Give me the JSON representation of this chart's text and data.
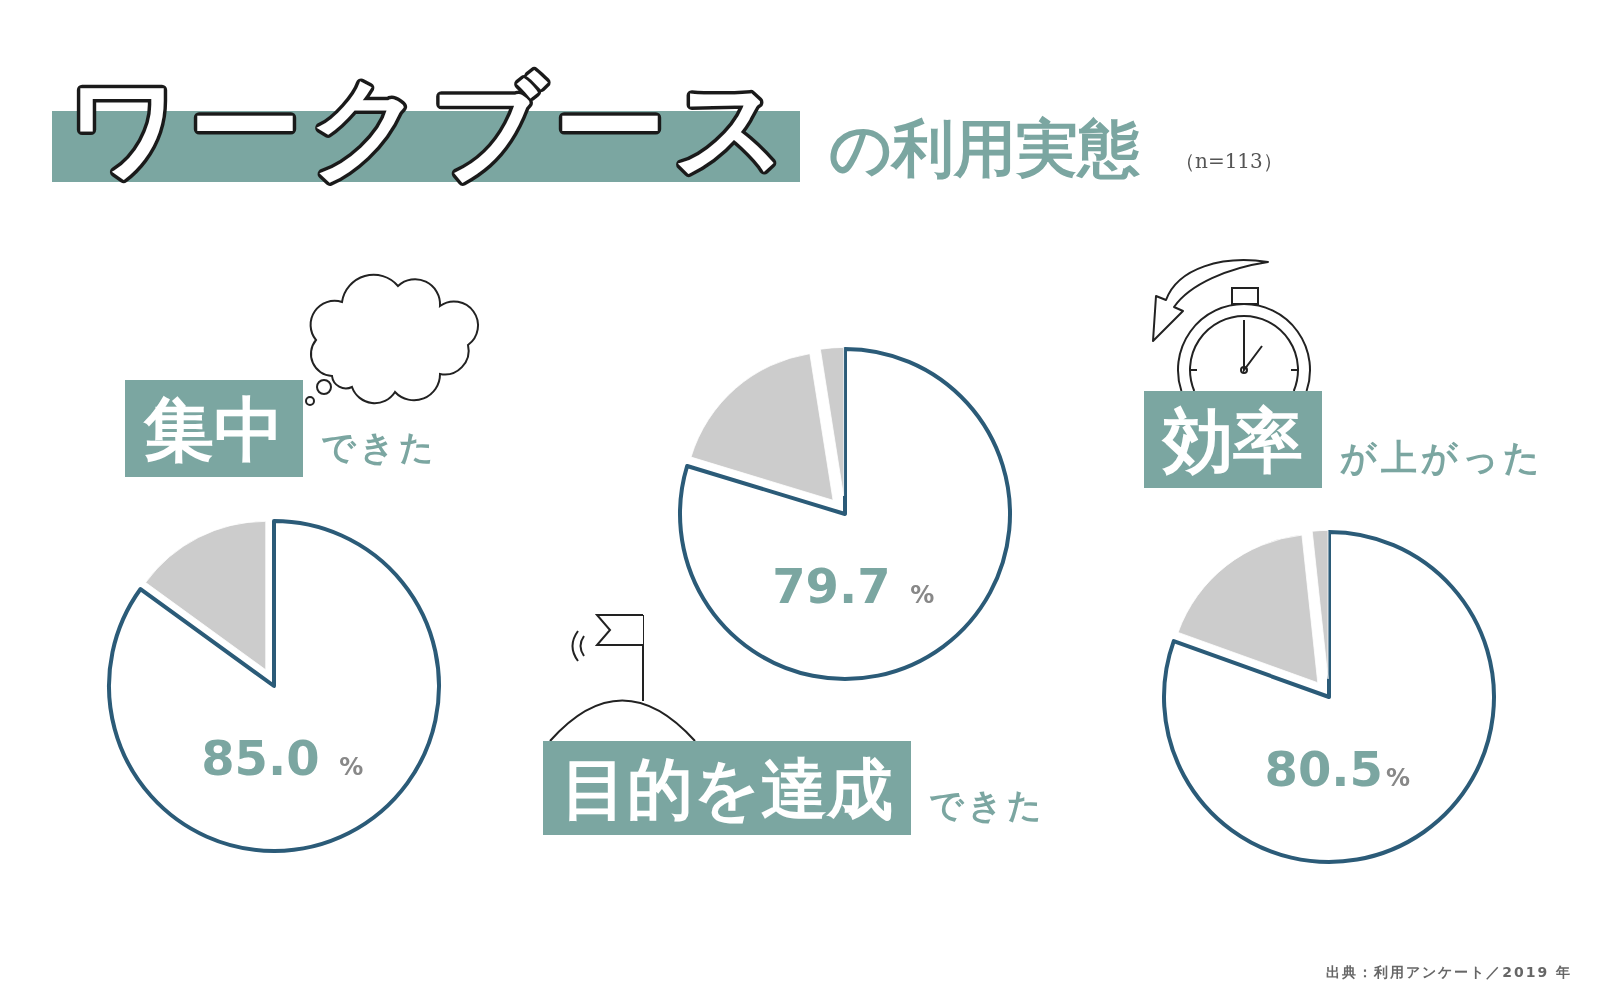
{
  "chart_data": [
    {
      "type": "other",
      "title": "ワークブース",
      "subtitle": "の利用実態",
      "annotations": [
        "（n=113）",
        "出典：利用アンケート／2019 年"
      ]
    },
    {
      "type": "pie",
      "title": "集中",
      "subtitle": "できた",
      "categories": [
        null,
        null
      ],
      "values": [
        85.0,
        15.0
      ],
      "colors": [
        "#ffffff",
        "#cccccc"
      ],
      "value_labels": [
        "85.0 %",
        null
      ]
    },
    {
      "type": "pie",
      "title": "目的を達成",
      "subtitle": "できた",
      "categories": [
        null,
        null,
        null
      ],
      "values": [
        79.7,
        17.8,
        2.5
      ],
      "colors": [
        "#ffffff",
        "#cccccc",
        "#cccccc"
      ],
      "value_labels": [
        "79.7 %",
        null,
        null
      ]
    },
    {
      "type": "pie",
      "title": "効率",
      "subtitle": "が上がった",
      "categories": [
        null,
        null,
        null
      ],
      "values": [
        80.5,
        17.8,
        1.7
      ],
      "colors": [
        "#ffffff",
        "#cccccc",
        "#cccccc"
      ],
      "value_labels": [
        "80.5%",
        null,
        null
      ]
    }
  ]
}
